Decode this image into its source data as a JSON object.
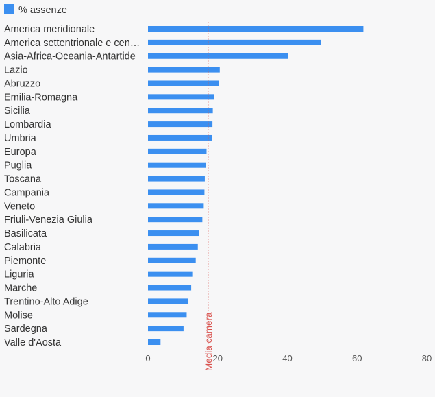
{
  "chart_data": {
    "type": "bar",
    "orientation": "horizontal",
    "legend": {
      "label": "% assenze",
      "color": "#3b8ff0",
      "position": "top-left"
    },
    "categories": [
      "America meridionale",
      "America settentrionale e cen…",
      "Asia-Africa-Oceania-Antartide",
      "Lazio",
      "Abruzzo",
      "Emilia-Romagna",
      "Sicilia",
      "Lombardia",
      "Umbria",
      "Europa",
      "Puglia",
      "Toscana",
      "Campania",
      "Veneto",
      "Friuli-Venezia Giulia",
      "Basilicata",
      "Calabria",
      "Piemonte",
      "Liguria",
      "Marche",
      "Trentino-Alto Adige",
      "Molise",
      "Sardegna",
      "Valle d'Aosta"
    ],
    "values": [
      61.8,
      49.6,
      40.2,
      20.6,
      20.3,
      19.0,
      18.6,
      18.5,
      18.4,
      16.8,
      16.6,
      16.3,
      16.2,
      16.0,
      15.6,
      14.6,
      14.3,
      13.7,
      12.9,
      12.4,
      11.6,
      11.1,
      10.2,
      3.6
    ],
    "xlim": [
      0,
      80
    ],
    "xticks": [
      "0",
      "20",
      "40",
      "60",
      "80"
    ],
    "reference_line": {
      "label": "Media camera",
      "value": 17.3,
      "color": "#d9534f"
    },
    "bar_color": "#3b8ff0"
  }
}
